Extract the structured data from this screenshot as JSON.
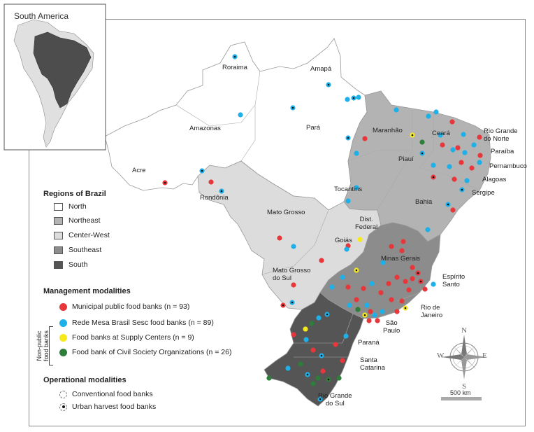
{
  "inset": {
    "title": "South America"
  },
  "states": {
    "roraima": "Roraima",
    "amapa": "Amapá",
    "amazonas": "Amazonas",
    "para": "Pará",
    "maranhao": "Maranhão",
    "ceara": "Ceará",
    "rio_grande_do_norte": "Rio Grande\ndo Norte",
    "paraiba": "Paraíba",
    "pernambuco": "Pernambuco",
    "alagoas": "Alagoas",
    "sergipe": "Sergipe",
    "piaui": "Piauí",
    "acre": "Acre",
    "rondonia": "Rondônia",
    "tocantins": "Tocantins",
    "bahia": "Bahia",
    "mato_grosso": "Mato Grosso",
    "dist_federal": "Dist.\nFederal",
    "goias": "Goiás",
    "minas_gerais": "Minas Gerais",
    "mato_grosso_do_sul": "Mato Grosso\ndo Sul",
    "espirito_santo": "Espírito\nSanto",
    "rio_de_janeiro": "Rio de\nJaneiro",
    "sao_paulo": "São\nPaulo",
    "parana": "Paraná",
    "santa_catarina": "Santa\nCatarina",
    "rio_grande_do_sul": "Rio Grande\ndo Sul"
  },
  "legend": {
    "regions_title": "Regions of Brazil",
    "regions": [
      {
        "label": "North",
        "color": "#ffffff"
      },
      {
        "label": "Northeast",
        "color": "#b3b3b3"
      },
      {
        "label": "Center-West",
        "color": "#dcdcdc"
      },
      {
        "label": "Southeast",
        "color": "#8c8c8c"
      },
      {
        "label": "South",
        "color": "#555555"
      }
    ],
    "management_title": "Management modalities",
    "management": [
      {
        "label": "Municipal public food banks (n = 93)",
        "color": "#e8373a"
      },
      {
        "label": "Rede Mesa Brasil Sesc food banks (n = 89)",
        "color": "#1eb0e8"
      },
      {
        "label": "Food banks at Supply Centers (n = 9)",
        "color": "#f7ea1c"
      },
      {
        "label": "Food bank of Civil Society Organizations (n = 26)",
        "color": "#2e7d3a"
      }
    ],
    "non_public_label": "Non-public\nfood banks",
    "operational_title": "Operational modalities",
    "operational": [
      {
        "label": "Conventional food banks"
      },
      {
        "label": "Urban harvest food banks"
      }
    ]
  },
  "compass": {
    "n": "N",
    "s": "S",
    "e": "E",
    "w": "W"
  },
  "scale": {
    "label": "500 km"
  }
}
